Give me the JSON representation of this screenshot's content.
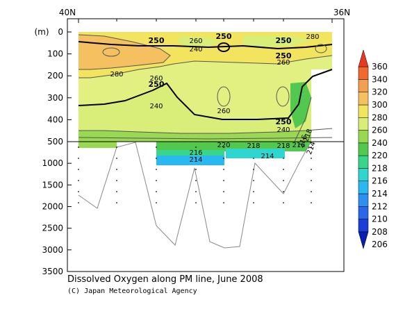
{
  "chart_data": {
    "type": "heatmap",
    "title": "Dissolved Oxygen along PM line, June 2008",
    "credit": "(C) Japan Meteorological Agency",
    "x_top_labels": [
      "40N",
      "36N"
    ],
    "y_unit_label": "(m)",
    "y_upper": {
      "ticks": [
        0,
        100,
        200,
        300,
        400,
        500
      ],
      "range": [
        0,
        500
      ]
    },
    "y_lower": {
      "ticks": [
        1000,
        1500,
        2000,
        2500,
        3000,
        3500
      ],
      "range": [
        500,
        3500
      ]
    },
    "colorbar": {
      "levels": [
        206,
        208,
        210,
        212,
        214,
        216,
        218,
        220,
        240,
        260,
        280,
        300,
        320,
        340,
        360
      ],
      "colors": [
        "#0a1fb0",
        "#1a3ed6",
        "#2a66e8",
        "#2f8ff0",
        "#2ab8f0",
        "#2fd6d0",
        "#38d68a",
        "#52c84e",
        "#98d852",
        "#d8ee78",
        "#f2e45e",
        "#f5c060",
        "#f0a050",
        "#f06a30",
        "#e83a20"
      ]
    },
    "contour_labels": [
      {
        "text": "250",
        "bold": true
      },
      {
        "text": "260",
        "bold": false
      },
      {
        "text": "250",
        "bold": true
      },
      {
        "text": "250",
        "bold": true
      },
      {
        "text": "280",
        "bold": false
      },
      {
        "text": "240",
        "bold": false
      },
      {
        "text": "250",
        "bold": true
      },
      {
        "text": "260",
        "bold": false
      },
      {
        "text": "280",
        "bold": false
      },
      {
        "text": "260",
        "bold": false
      },
      {
        "text": "250",
        "bold": true
      },
      {
        "text": "240",
        "bold": false
      },
      {
        "text": "260",
        "bold": false
      },
      {
        "text": "250",
        "bold": true
      },
      {
        "text": "240",
        "bold": false
      },
      {
        "text": "220",
        "bold": false
      },
      {
        "text": "218",
        "bold": false
      },
      {
        "text": "218",
        "bold": false
      },
      {
        "text": "216",
        "bold": false
      },
      {
        "text": "214",
        "bold": false
      },
      {
        "text": "216",
        "bold": false
      },
      {
        "text": "214",
        "bold": false
      },
      {
        "text": "214",
        "bold": false
      },
      {
        "text": "216",
        "bold": false
      },
      {
        "text": "218",
        "bold": false
      }
    ]
  }
}
